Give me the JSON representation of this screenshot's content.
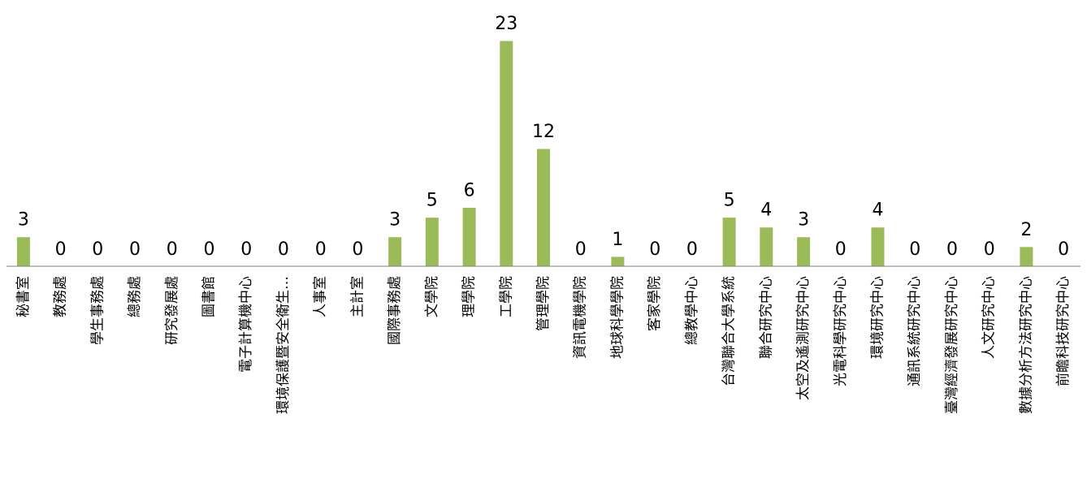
{
  "chart_data": {
    "type": "bar",
    "title": "",
    "xlabel": "",
    "ylabel": "",
    "ylim": [
      0,
      23
    ],
    "grid": false,
    "legend": "none",
    "bar_color": "#9BBB59",
    "bar_edge_color": "#FFFFFF",
    "axis_color": "#808080",
    "categories": [
      "秘書室",
      "教務處",
      "學生事務處",
      "總務處",
      "研究發展處",
      "圖書館",
      "電子計算機中心",
      "環境保護暨安全衛生…",
      "人事室",
      "主計室",
      "國際事務處",
      "文學院",
      "理學院",
      "工學院",
      "管理學院",
      "資訊電機學院",
      "地球科學學院",
      "客家學院",
      "總教學中心",
      "台灣聯合大學系統",
      "聯合研究中心",
      "太空及遙測研究中心",
      "光電科學研究中心",
      "環境研究中心",
      "通訊系統研究中心",
      "臺灣經濟發展研究中心",
      "人文研究中心",
      "數據分析方法研究中心",
      "前瞻科技研究中心"
    ],
    "values": [
      3,
      0,
      0,
      0,
      0,
      0,
      0,
      0,
      0,
      0,
      3,
      5,
      6,
      23,
      12,
      0,
      1,
      0,
      0,
      5,
      4,
      3,
      0,
      4,
      0,
      0,
      0,
      2,
      0
    ]
  }
}
